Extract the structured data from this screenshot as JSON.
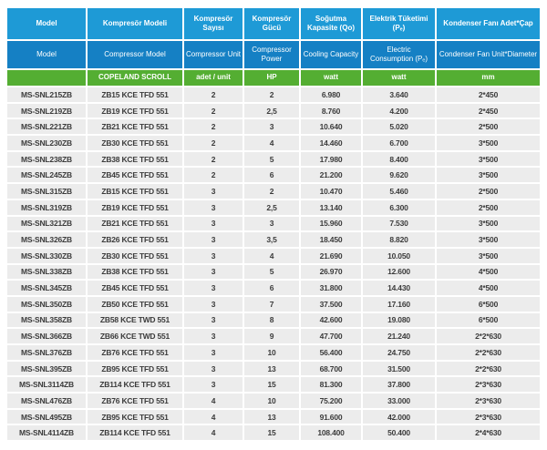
{
  "table": {
    "columns": [
      {
        "tr": "Model",
        "en": "Model",
        "unit": ""
      },
      {
        "tr": "Kompresör Modeli",
        "en": "Compressor Model",
        "unit": "COPELAND SCROLL"
      },
      {
        "tr": "Kompresör Sayısı",
        "en": "Compressor Unit",
        "unit": "adet / unit"
      },
      {
        "tr": "Kompresör Gücü",
        "en": "Compressor Power",
        "unit": "HP"
      },
      {
        "tr": "Soğutma Kapasite (Qo)",
        "en": "Cooling Capacity",
        "unit": "watt"
      },
      {
        "tr": "Elektrik Tüketimi (Pₑ)",
        "en": "Electric Consumption (Pₑ)",
        "unit": "watt"
      },
      {
        "tr": "Kondenser Fanı Adet*Çap",
        "en": "Condenser Fan Unit*Diameter",
        "unit": "mm"
      }
    ],
    "rows": [
      {
        "model": "MS-SNL215ZB",
        "compressor_model": "ZB15 KCE TFD 551",
        "units": "2",
        "hp": "2",
        "cooling_capacity_watt": "6.980",
        "electric_consumption_watt": "3.640",
        "condenser_fan": "2*450"
      },
      {
        "model": "MS-SNL219ZB",
        "compressor_model": "ZB19 KCE TFD 551",
        "units": "2",
        "hp": "2,5",
        "cooling_capacity_watt": "8.760",
        "electric_consumption_watt": "4.200",
        "condenser_fan": "2*450"
      },
      {
        "model": "MS-SNL221ZB",
        "compressor_model": "ZB21 KCE TFD 551",
        "units": "2",
        "hp": "3",
        "cooling_capacity_watt": "10.640",
        "electric_consumption_watt": "5.020",
        "condenser_fan": "2*500"
      },
      {
        "model": "MS-SNL230ZB",
        "compressor_model": "ZB30 KCE TFD 551",
        "units": "2",
        "hp": "4",
        "cooling_capacity_watt": "14.460",
        "electric_consumption_watt": "6.700",
        "condenser_fan": "3*500"
      },
      {
        "model": "MS-SNL238ZB",
        "compressor_model": "ZB38 KCE TFD 551",
        "units": "2",
        "hp": "5",
        "cooling_capacity_watt": "17.980",
        "electric_consumption_watt": "8.400",
        "condenser_fan": "3*500"
      },
      {
        "model": "MS-SNL245ZB",
        "compressor_model": "ZB45 KCE TFD 551",
        "units": "2",
        "hp": "6",
        "cooling_capacity_watt": "21.200",
        "electric_consumption_watt": "9.620",
        "condenser_fan": "3*500"
      },
      {
        "model": "MS-SNL315ZB",
        "compressor_model": "ZB15 KCE TFD 551",
        "units": "3",
        "hp": "2",
        "cooling_capacity_watt": "10.470",
        "electric_consumption_watt": "5.460",
        "condenser_fan": "2*500"
      },
      {
        "model": "MS-SNL319ZB",
        "compressor_model": "ZB19 KCE TFD 551",
        "units": "3",
        "hp": "2,5",
        "cooling_capacity_watt": "13.140",
        "electric_consumption_watt": "6.300",
        "condenser_fan": "2*500"
      },
      {
        "model": "MS-SNL321ZB",
        "compressor_model": "ZB21 KCE TFD 551",
        "units": "3",
        "hp": "3",
        "cooling_capacity_watt": "15.960",
        "electric_consumption_watt": "7.530",
        "condenser_fan": "3*500"
      },
      {
        "model": "MS-SNL326ZB",
        "compressor_model": "ZB26 KCE TFD 551",
        "units": "3",
        "hp": "3,5",
        "cooling_capacity_watt": "18.450",
        "electric_consumption_watt": "8.820",
        "condenser_fan": "3*500"
      },
      {
        "model": "MS-SNL330ZB",
        "compressor_model": "ZB30 KCE TFD 551",
        "units": "3",
        "hp": "4",
        "cooling_capacity_watt": "21.690",
        "electric_consumption_watt": "10.050",
        "condenser_fan": "3*500"
      },
      {
        "model": "MS-SNL338ZB",
        "compressor_model": "ZB38 KCE TFD 551",
        "units": "3",
        "hp": "5",
        "cooling_capacity_watt": "26.970",
        "electric_consumption_watt": "12.600",
        "condenser_fan": "4*500"
      },
      {
        "model": "MS-SNL345ZB",
        "compressor_model": "ZB45 KCE TFD 551",
        "units": "3",
        "hp": "6",
        "cooling_capacity_watt": "31.800",
        "electric_consumption_watt": "14.430",
        "condenser_fan": "4*500"
      },
      {
        "model": "MS-SNL350ZB",
        "compressor_model": "ZB50 KCE TFD 551",
        "units": "3",
        "hp": "7",
        "cooling_capacity_watt": "37.500",
        "electric_consumption_watt": "17.160",
        "condenser_fan": "6*500"
      },
      {
        "model": "MS-SNL358ZB",
        "compressor_model": "ZB58 KCE TWD 551",
        "units": "3",
        "hp": "8",
        "cooling_capacity_watt": "42.600",
        "electric_consumption_watt": "19.080",
        "condenser_fan": "6*500"
      },
      {
        "model": "MS-SNL366ZB",
        "compressor_model": "ZB66 KCE TWD 551",
        "units": "3",
        "hp": "9",
        "cooling_capacity_watt": "47.700",
        "electric_consumption_watt": "21.240",
        "condenser_fan": "2*2*630"
      },
      {
        "model": "MS-SNL376ZB",
        "compressor_model": "ZB76 KCE TFD 551",
        "units": "3",
        "hp": "10",
        "cooling_capacity_watt": "56.400",
        "electric_consumption_watt": "24.750",
        "condenser_fan": "2*2*630"
      },
      {
        "model": "MS-SNL395ZB",
        "compressor_model": "ZB95 KCE TFD 551",
        "units": "3",
        "hp": "13",
        "cooling_capacity_watt": "68.700",
        "electric_consumption_watt": "31.500",
        "condenser_fan": "2*2*630"
      },
      {
        "model": "MS-SNL3114ZB",
        "compressor_model": "ZB114 KCE TFD 551",
        "units": "3",
        "hp": "15",
        "cooling_capacity_watt": "81.300",
        "electric_consumption_watt": "37.800",
        "condenser_fan": "2*3*630"
      },
      {
        "model": "MS-SNL476ZB",
        "compressor_model": "ZB76 KCE TFD 551",
        "units": "4",
        "hp": "10",
        "cooling_capacity_watt": "75.200",
        "electric_consumption_watt": "33.000",
        "condenser_fan": "2*3*630"
      },
      {
        "model": "MS-SNL495ZB",
        "compressor_model": "ZB95 KCE TFD 551",
        "units": "4",
        "hp": "13",
        "cooling_capacity_watt": "91.600",
        "electric_consumption_watt": "42.000",
        "condenser_fan": "2*3*630"
      },
      {
        "model": "MS-SNL4114ZB",
        "compressor_model": "ZB114 KCE TFD 551",
        "units": "4",
        "hp": "15",
        "cooling_capacity_watt": "108.400",
        "electric_consumption_watt": "50.400",
        "condenser_fan": "2*4*630"
      }
    ]
  },
  "colors": {
    "header_blue_top": "#1e9ad6",
    "header_blue_bottom": "#1580c4",
    "unit_row_green": "#54ae32",
    "data_row_bg": "#ececec",
    "data_text": "#3b3b3b",
    "separator": "#ffffff"
  }
}
